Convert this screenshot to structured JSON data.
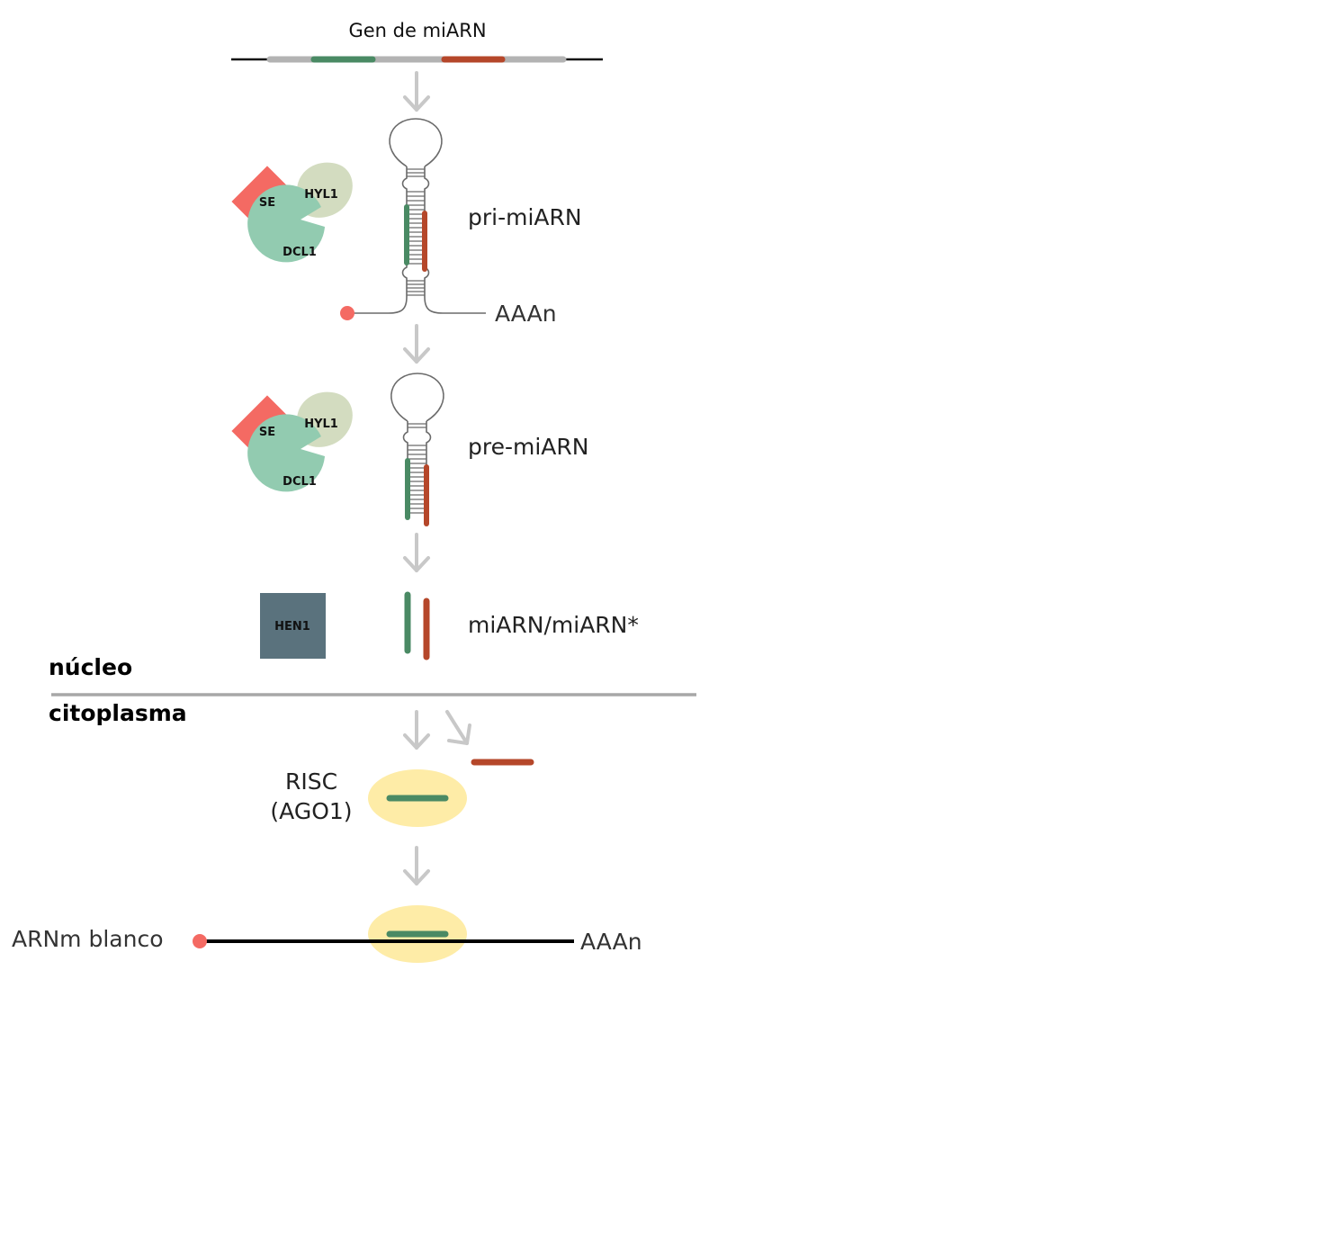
{
  "title": "Gen de miARN",
  "labels": {
    "pri": "pri-miARN",
    "pre": "pre-miARN",
    "duplex": "miARN/miARN*",
    "polyA_top": "AAAn",
    "polyA_bottom": "AAAn",
    "nucleus": "núcleo",
    "cytoplasm": "citoplasma",
    "risc_line1": "RISC",
    "risc_line2": "(AGO1)",
    "target": "ARNm blanco"
  },
  "proteins": {
    "se": "SE",
    "hyl1": "HYL1",
    "dcl1": "DCL1",
    "hen1": "HEN1"
  },
  "colors": {
    "mirna": "#4a8a64",
    "mirna_star": "#b5472a",
    "se": "#f46a63",
    "hyl1": "#d3dcc0",
    "dcl1": "#92cbb0",
    "hen1": "#5a727d",
    "risc": "#feeca7",
    "arrow": "#c8c8c8",
    "cap": "#f46a63",
    "gene": "#b3b3b3",
    "divider": "#a7a7a7"
  }
}
